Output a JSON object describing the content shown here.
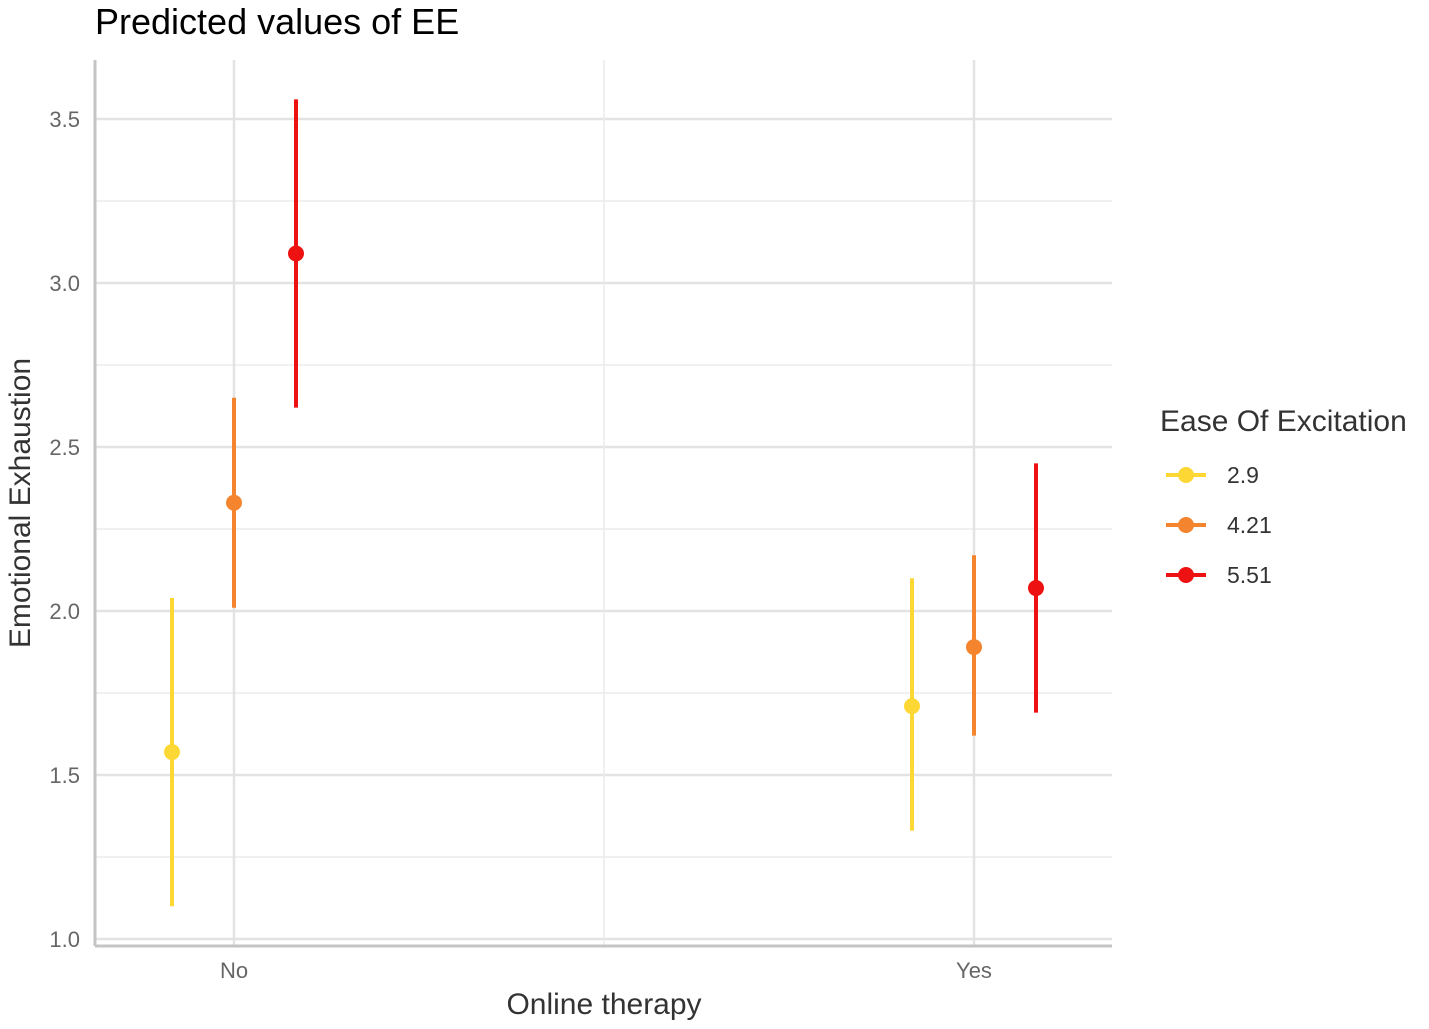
{
  "chart_data": {
    "type": "scatter",
    "title": "Predicted values of EE",
    "xlabel": "Online therapy",
    "ylabel": "Emotional Exhaustion",
    "categories": [
      "No",
      "Yes"
    ],
    "ylim": [
      1.0,
      3.65
    ],
    "yticks": [
      1.0,
      1.5,
      2.0,
      2.5,
      3.0,
      3.5
    ],
    "ytick_labels": [
      "1.0",
      "1.5",
      "2.0",
      "2.5",
      "3.0",
      "3.5"
    ],
    "grid": true,
    "legend": {
      "title": "Ease Of Excitation",
      "position": "right"
    },
    "series": [
      {
        "name": "2.9",
        "color": "#FDD835",
        "values": [
          1.57,
          1.71
        ],
        "lower": [
          1.1,
          1.33
        ],
        "upper": [
          2.04,
          2.1
        ]
      },
      {
        "name": "4.21",
        "color": "#F5842F",
        "values": [
          2.33,
          1.89
        ],
        "lower": [
          2.01,
          1.62
        ],
        "upper": [
          2.65,
          2.17
        ]
      },
      {
        "name": "5.51",
        "color": "#EE1111",
        "values": [
          3.09,
          2.07
        ],
        "lower": [
          2.62,
          1.69
        ],
        "upper": [
          3.56,
          2.45
        ]
      }
    ]
  }
}
